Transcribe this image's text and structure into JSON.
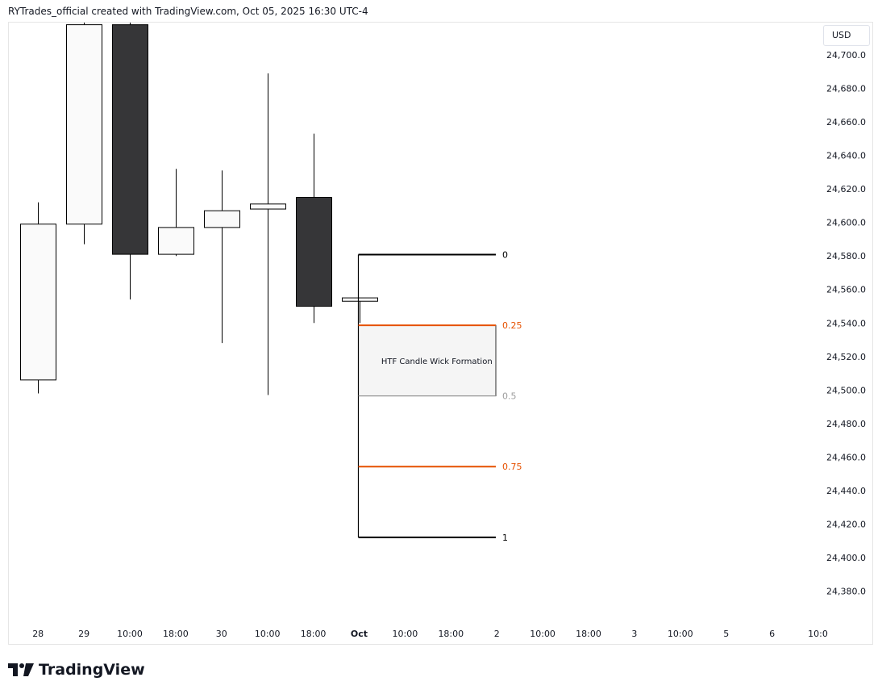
{
  "header": {
    "attribution": "RYTrades_official created with TradingView.com, Oct 05, 2025 16:30 UTC-4"
  },
  "price_axis": {
    "currency": "USD",
    "labels": [
      "24,700.0",
      "24,680.0",
      "24,660.0",
      "24,640.0",
      "24,620.0",
      "24,600.0",
      "24,580.0",
      "24,560.0",
      "24,540.0",
      "24,520.0",
      "24,500.0",
      "24,480.0",
      "24,460.0",
      "24,440.0",
      "24,420.0",
      "24,400.0",
      "24,380.0"
    ]
  },
  "time_axis": {
    "labels": [
      "28",
      "29",
      "10:00",
      "18:00",
      "30",
      "10:00",
      "18:00",
      "Oct",
      "10:00",
      "18:00",
      "2",
      "10:00",
      "18:00",
      "3",
      "10:00",
      "5",
      "6",
      "10:0"
    ],
    "bold_label": "Oct"
  },
  "footer": {
    "brand": "TradingView"
  },
  "colors": {
    "bull_fill": "#fafafa",
    "bear_fill": "#363638",
    "candle_border": "#000000",
    "fib_extreme": "#000000",
    "fib_quarter": "#e65100",
    "fib_half": "#9e9e9e",
    "zone_fill": "#f5f5f5",
    "zone_border": "#2a2a2a"
  },
  "chart_data": {
    "type": "candlestick",
    "ylim": [
      24370,
      24730
    ],
    "candles": [
      {
        "open": 24506,
        "high": 24612,
        "low": 24498,
        "close": 24599
      },
      {
        "open": 24599,
        "high": 24738,
        "low": 24587,
        "close": 24718
      },
      {
        "open": 24718,
        "high": 24738,
        "low": 24554,
        "close": 24581
      },
      {
        "open": 24581,
        "high": 24632,
        "low": 24580,
        "close": 24597
      },
      {
        "open": 24597,
        "high": 24631,
        "low": 24528,
        "close": 24607
      },
      {
        "open": 24608,
        "high": 24689,
        "low": 24497,
        "close": 24611
      },
      {
        "open": 24615,
        "high": 24653,
        "low": 24540,
        "close": 24550
      },
      {
        "open": 24553,
        "high": 24555,
        "low": 24540,
        "close": 24555
      }
    ],
    "fibonacci": {
      "levels": [
        {
          "label": "0",
          "price": 24580.8,
          "style": "extreme"
        },
        {
          "label": "0.25",
          "price": 24538.6,
          "style": "quarter"
        },
        {
          "label": "0.5",
          "price": 24496.5,
          "style": "half"
        },
        {
          "label": "0.75",
          "price": 24454.3,
          "style": "quarter"
        },
        {
          "label": "1",
          "price": 24412.1,
          "style": "extreme"
        }
      ]
    },
    "zone": {
      "label": "HTF Candle Wick Formation",
      "top": 24538.6,
      "bottom": 24496.5
    }
  }
}
